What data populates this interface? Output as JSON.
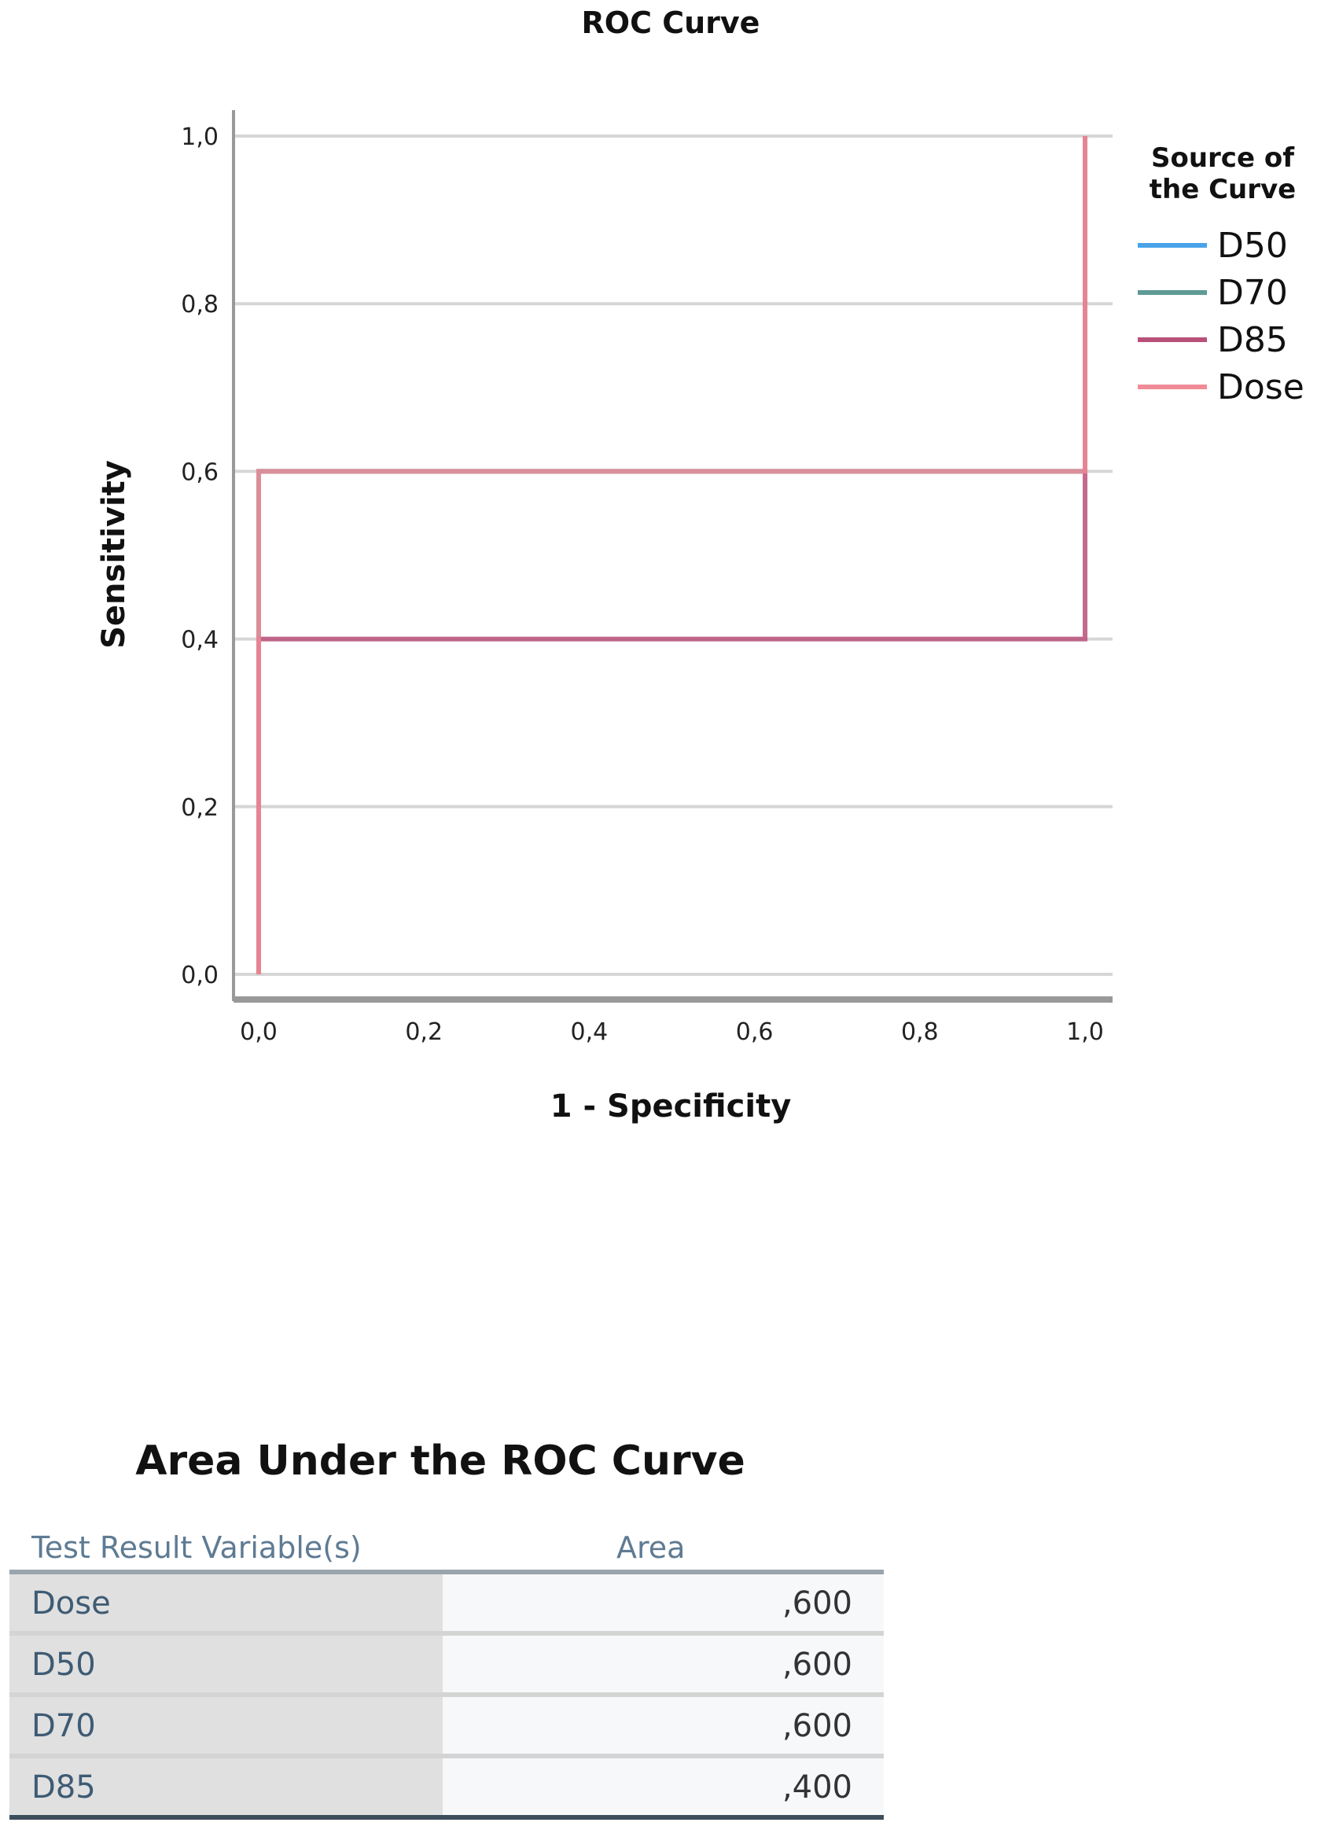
{
  "chart_data": {
    "type": "line",
    "title": "ROC Curve",
    "xlabel": "1 - Specificity",
    "ylabel": "Sensitivity",
    "xlim": [
      0,
      1
    ],
    "ylim": [
      0,
      1
    ],
    "xticks": [
      "0,0",
      "0,2",
      "0,4",
      "0,6",
      "0,8",
      "1,0"
    ],
    "yticks": [
      "0,0",
      "0,2",
      "0,4",
      "0,6",
      "0,8",
      "1,0"
    ],
    "grid": "horizontal",
    "legend": {
      "title": "Source of the Curve",
      "title_lines": [
        "Source of",
        "the Curve"
      ],
      "position": "right"
    },
    "series": [
      {
        "name": "D50",
        "color": "#4aa3e8",
        "points": [
          [
            0,
            0
          ],
          [
            0,
            0.6
          ],
          [
            1,
            0.6
          ],
          [
            1,
            1
          ]
        ]
      },
      {
        "name": "D70",
        "color": "#5f9a96",
        "points": [
          [
            0,
            0
          ],
          [
            0,
            0.6
          ],
          [
            1,
            0.6
          ],
          [
            1,
            1
          ]
        ]
      },
      {
        "name": "D85",
        "color": "#b8507a",
        "points": [
          [
            0,
            0
          ],
          [
            0,
            0.4
          ],
          [
            1,
            0.4
          ],
          [
            1,
            1
          ]
        ]
      },
      {
        "name": "Dose",
        "color": "#f08c96",
        "points": [
          [
            0,
            0
          ],
          [
            0,
            0.6
          ],
          [
            1,
            0.6
          ],
          [
            1,
            1
          ]
        ]
      }
    ]
  },
  "table": {
    "title": "Area Under the ROC Curve",
    "headers": [
      "Test Result Variable(s)",
      "Area"
    ],
    "rows": [
      {
        "variable": "Dose",
        "area": ",600"
      },
      {
        "variable": "D50",
        "area": ",600"
      },
      {
        "variable": "D70",
        "area": ",600"
      },
      {
        "variable": "D85",
        "area": ",400"
      }
    ]
  }
}
